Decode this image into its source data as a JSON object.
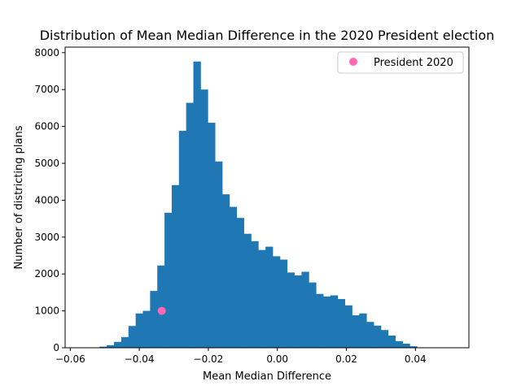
{
  "chart_data": {
    "type": "bar",
    "title": "Distribution of Mean Median Difference in the 2020 President election",
    "xlabel": "Mean Median Difference",
    "ylabel": "Number of districting plans",
    "xlim": [
      -0.0615,
      0.0555
    ],
    "ylim": [
      0,
      8150
    ],
    "xticks": [
      -0.06,
      -0.04,
      -0.02,
      0.0,
      0.02,
      0.04
    ],
    "xtick_labels": [
      "−0.06",
      "−0.04",
      "−0.02",
      "0.00",
      "0.02",
      "0.04"
    ],
    "yticks": [
      0,
      1000,
      2000,
      3000,
      4000,
      5000,
      6000,
      7000,
      8000
    ],
    "ytick_labels": [
      "0",
      "1000",
      "2000",
      "3000",
      "4000",
      "5000",
      "6000",
      "7000",
      "8000"
    ],
    "bar_color": "#1f77b4",
    "bins": {
      "start": -0.0536,
      "width": 0.00209,
      "counts": [
        5,
        30,
        70,
        160,
        290,
        590,
        930,
        1000,
        1540,
        2230,
        3660,
        4410,
        5880,
        6640,
        7760,
        7000,
        6100,
        5050,
        4160,
        3820,
        3520,
        3090,
        2890,
        2650,
        2740,
        2480,
        2390,
        2040,
        1960,
        2060,
        1770,
        1460,
        1390,
        1420,
        1320,
        1150,
        880,
        930,
        700,
        600,
        480,
        330,
        180,
        110,
        40,
        10
      ]
    },
    "marker": {
      "name": "President 2020",
      "x": -0.0335,
      "y": 1000,
      "color": "#ff69b4"
    },
    "legend": {
      "placement": "top-right",
      "entries": [
        "President 2020"
      ]
    }
  }
}
